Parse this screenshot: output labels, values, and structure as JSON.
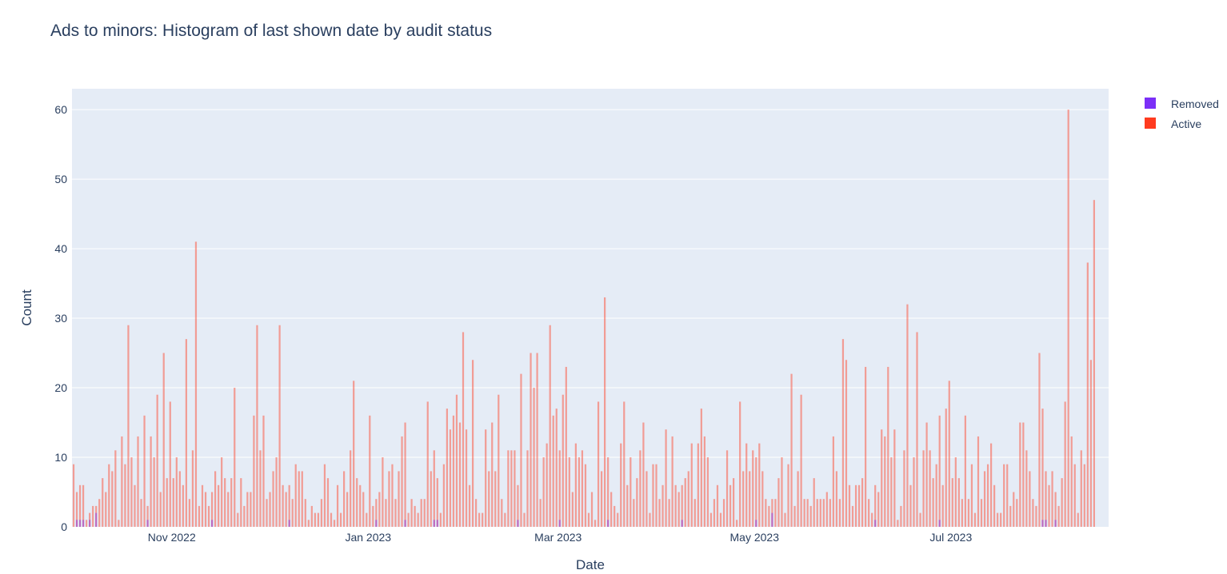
{
  "chart_data": {
    "type": "bar",
    "title": "Ads to minors: Histogram of last shown date by audit status",
    "xlabel": "Date",
    "ylabel": "Count",
    "x_range": [
      "2022-10-01",
      "2023-08-19"
    ],
    "ylim": [
      0,
      63
    ],
    "barmode": "overlay",
    "grid": true,
    "legend_position": "top-right",
    "plot_bgcolor": "#e5ecf6",
    "y_ticks": [
      0,
      10,
      20,
      30,
      40,
      50,
      60
    ],
    "x_ticks": [
      {
        "date": "2022-11-01",
        "label": "Nov 2022"
      },
      {
        "date": "2023-01-01",
        "label": "Jan 2023"
      },
      {
        "date": "2023-03-01",
        "label": "Mar 2023"
      },
      {
        "date": "2023-05-01",
        "label": "May 2023"
      },
      {
        "date": "2023-07-01",
        "label": "Jul 2023"
      }
    ],
    "start_date": "2022-10-01",
    "series": [
      {
        "name": "Removed",
        "color": "#7b2ff7",
        "values": {
          "2022-10-02": 1,
          "2022-10-03": 1,
          "2022-10-04": 1,
          "2022-10-06": 1,
          "2022-10-08": 2,
          "2022-10-24": 1,
          "2022-11-13": 1,
          "2022-12-07": 1,
          "2023-01-03": 1,
          "2023-01-12": 1,
          "2023-01-21": 1,
          "2023-01-22": 1,
          "2023-02-16": 1,
          "2023-03-01": 1,
          "2023-03-16": 1,
          "2023-04-08": 1,
          "2023-05-01": 1,
          "2023-05-06": 2,
          "2023-06-07": 1,
          "2023-06-27": 1,
          "2023-07-29": 1,
          "2023-07-30": 1,
          "2023-08-02": 1
        }
      },
      {
        "name": "Active",
        "color": "#ff3b1f",
        "values": [
          9,
          5,
          6,
          6,
          1,
          2,
          3,
          3,
          4,
          7,
          5,
          9,
          8,
          11,
          1,
          13,
          9,
          29,
          10,
          6,
          13,
          4,
          16,
          3,
          13,
          10,
          19,
          5,
          25,
          7,
          18,
          7,
          10,
          8,
          6,
          27,
          4,
          11,
          41,
          3,
          6,
          5,
          3,
          5,
          8,
          6,
          10,
          7,
          5,
          7,
          20,
          2,
          7,
          3,
          5,
          5,
          16,
          29,
          11,
          16,
          4,
          5,
          8,
          10,
          29,
          6,
          5,
          6,
          4,
          9,
          8,
          8,
          4,
          1,
          3,
          2,
          2,
          4,
          9,
          7,
          2,
          1,
          6,
          2,
          8,
          5,
          11,
          21,
          7,
          6,
          5,
          2,
          16,
          3,
          4,
          5,
          10,
          4,
          8,
          9,
          4,
          8,
          13,
          15,
          2,
          4,
          3,
          2,
          4,
          4,
          18,
          8,
          11,
          7,
          2,
          9,
          17,
          14,
          16,
          19,
          15,
          28,
          14,
          6,
          24,
          4,
          2,
          2,
          14,
          8,
          15,
          8,
          19,
          4,
          2,
          11,
          11,
          11,
          6,
          22,
          2,
          11,
          25,
          20,
          25,
          4,
          10,
          12,
          29,
          16,
          17,
          11,
          19,
          23,
          10,
          5,
          12,
          10,
          11,
          9,
          2,
          5,
          1,
          18,
          8,
          33,
          10,
          5,
          3,
          2,
          12,
          18,
          6,
          10,
          4,
          7,
          11,
          15,
          8,
          2,
          9,
          9,
          4,
          6,
          14,
          4,
          13,
          6,
          5,
          6,
          7,
          8,
          12,
          4,
          12,
          17,
          13,
          10,
          2,
          4,
          6,
          2,
          4,
          11,
          6,
          7,
          1,
          18,
          8,
          12,
          8,
          11,
          10,
          12,
          8,
          4,
          3,
          4,
          4,
          7,
          10,
          2,
          9,
          22,
          3,
          8,
          19,
          4,
          4,
          3,
          7,
          4,
          4,
          4,
          5,
          4,
          13,
          8,
          4,
          27,
          24,
          6,
          3,
          6,
          6,
          7,
          23,
          4,
          2,
          6,
          5,
          14,
          13,
          23,
          10,
          14,
          1,
          3,
          11,
          32,
          6,
          10,
          28,
          2,
          11,
          15,
          11,
          7,
          9,
          16,
          6,
          17,
          21,
          7,
          10,
          7,
          4,
          16,
          4,
          9,
          2,
          13,
          4,
          8,
          9,
          12,
          6,
          2,
          2,
          9,
          9,
          3,
          5,
          4,
          15,
          15,
          11,
          8,
          4,
          3,
          25,
          17,
          8,
          6,
          8,
          5,
          3,
          7,
          18,
          60,
          13,
          9,
          2,
          11,
          9,
          38,
          24,
          47
        ]
      }
    ]
  }
}
